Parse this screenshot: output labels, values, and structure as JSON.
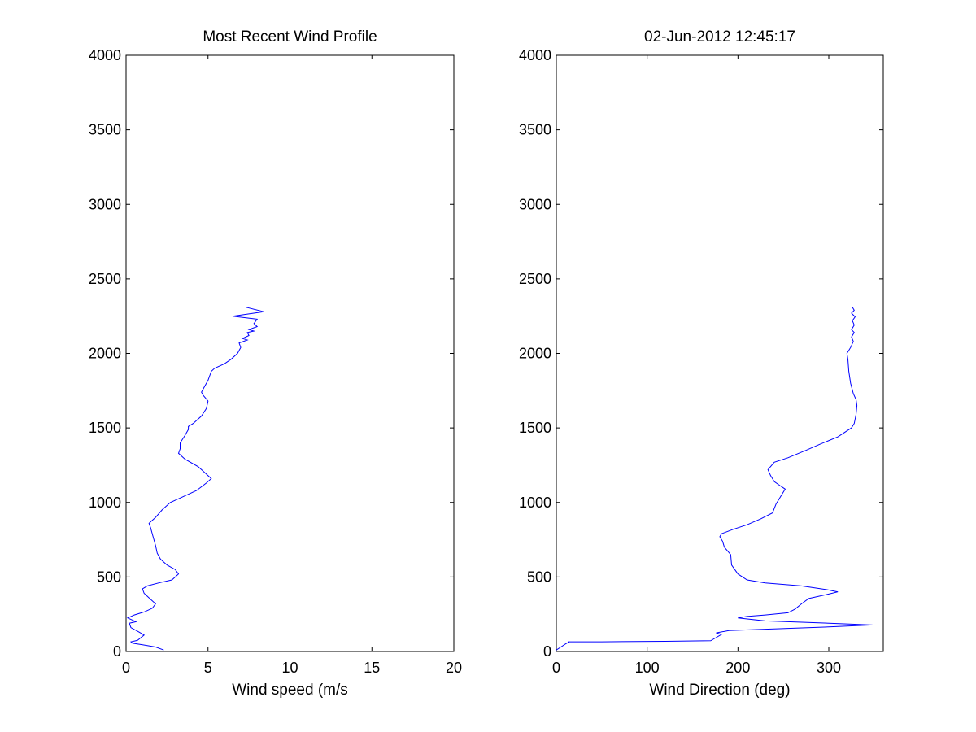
{
  "chart_data": [
    {
      "type": "line",
      "title": "Most Recent Wind Profile",
      "xlabel": "Wind speed (m/s",
      "ylabel": "",
      "xlim": [
        0,
        20
      ],
      "ylim": [
        0,
        4000
      ],
      "xticks": [
        0,
        5,
        10,
        15,
        20
      ],
      "yticks": [
        0,
        500,
        1000,
        1500,
        2000,
        2500,
        3000,
        3500,
        4000
      ],
      "grid": false,
      "line_color": "#0000ff",
      "series": [
        {
          "points": [
            [
              2.3,
              10
            ],
            [
              1.8,
              30
            ],
            [
              1.0,
              45
            ],
            [
              0.4,
              55
            ],
            [
              0.3,
              65
            ],
            [
              0.7,
              75
            ],
            [
              1.1,
              110
            ],
            [
              0.8,
              130
            ],
            [
              0.3,
              160
            ],
            [
              0.2,
              190
            ],
            [
              0.6,
              200
            ],
            [
              0.3,
              215
            ],
            [
              0.1,
              225
            ],
            [
              0.5,
              245
            ],
            [
              1.1,
              265
            ],
            [
              1.6,
              290
            ],
            [
              1.8,
              320
            ],
            [
              1.5,
              350
            ],
            [
              1.1,
              390
            ],
            [
              1.0,
              420
            ],
            [
              1.3,
              440
            ],
            [
              2.0,
              460
            ],
            [
              2.8,
              480
            ],
            [
              3.2,
              520
            ],
            [
              3.0,
              550
            ],
            [
              2.5,
              580
            ],
            [
              2.1,
              620
            ],
            [
              1.9,
              660
            ],
            [
              1.8,
              710
            ],
            [
              1.6,
              790
            ],
            [
              1.5,
              830
            ],
            [
              1.4,
              860
            ],
            [
              1.6,
              880
            ],
            [
              1.8,
              900
            ],
            [
              2.2,
              950
            ],
            [
              2.7,
              1000
            ],
            [
              3.3,
              1030
            ],
            [
              4.3,
              1080
            ],
            [
              4.9,
              1130
            ],
            [
              5.2,
              1160
            ],
            [
              4.9,
              1190
            ],
            [
              4.4,
              1240
            ],
            [
              3.6,
              1290
            ],
            [
              3.2,
              1330
            ],
            [
              3.3,
              1360
            ],
            [
              3.3,
              1400
            ],
            [
              3.6,
              1450
            ],
            [
              3.8,
              1490
            ],
            [
              3.8,
              1510
            ],
            [
              4.1,
              1530
            ],
            [
              4.6,
              1580
            ],
            [
              4.9,
              1630
            ],
            [
              5.0,
              1680
            ],
            [
              4.7,
              1720
            ],
            [
              4.6,
              1740
            ],
            [
              4.7,
              1760
            ],
            [
              5.0,
              1820
            ],
            [
              5.2,
              1880
            ],
            [
              5.4,
              1900
            ],
            [
              6.0,
              1930
            ],
            [
              6.4,
              1960
            ],
            [
              6.8,
              2000
            ],
            [
              7.0,
              2040
            ],
            [
              6.9,
              2070
            ],
            [
              7.4,
              2090
            ],
            [
              7.1,
              2100
            ],
            [
              7.5,
              2120
            ],
            [
              7.4,
              2140
            ],
            [
              7.8,
              2150
            ],
            [
              7.5,
              2160
            ],
            [
              8.0,
              2180
            ],
            [
              7.8,
              2200
            ],
            [
              8.0,
              2230
            ],
            [
              6.5,
              2250
            ],
            [
              8.4,
              2280
            ],
            [
              7.3,
              2310
            ]
          ]
        }
      ]
    },
    {
      "type": "line",
      "title": "02-Jun-2012 12:45:17",
      "xlabel": "Wind Direction (deg)",
      "ylabel": "",
      "xlim": [
        0,
        360
      ],
      "ylim": [
        0,
        4000
      ],
      "xticks": [
        0,
        100,
        200,
        300
      ],
      "yticks": [
        0,
        500,
        1000,
        1500,
        2000,
        2500,
        3000,
        3500,
        4000
      ],
      "grid": false,
      "line_color": "#0000ff",
      "series": [
        {
          "points": [
            [
              0,
              10
            ],
            [
              5,
              30
            ],
            [
              10,
              50
            ],
            [
              13,
              60
            ],
            [
              13,
              65
            ],
            [
              50,
              65
            ],
            [
              120,
              68
            ],
            [
              170,
              72
            ],
            [
              175,
              90
            ],
            [
              182,
              115
            ],
            [
              176,
              125
            ],
            [
              190,
              140
            ],
            [
              300,
              165
            ],
            [
              348,
              178
            ],
            [
              300,
              190
            ],
            [
              230,
              205
            ],
            [
              200,
              225
            ],
            [
              210,
              235
            ],
            [
              230,
              245
            ],
            [
              255,
              260
            ],
            [
              263,
              285
            ],
            [
              270,
              320
            ],
            [
              278,
              355
            ],
            [
              300,
              385
            ],
            [
              310,
              400
            ],
            [
              298,
              415
            ],
            [
              270,
              440
            ],
            [
              230,
              460
            ],
            [
              210,
              480
            ],
            [
              200,
              520
            ],
            [
              193,
              580
            ],
            [
              192,
              650
            ],
            [
              185,
              700
            ],
            [
              183,
              740
            ],
            [
              180,
              770
            ],
            [
              182,
              790
            ],
            [
              195,
              820
            ],
            [
              210,
              850
            ],
            [
              225,
              890
            ],
            [
              238,
              930
            ],
            [
              242,
              990
            ],
            [
              248,
              1050
            ],
            [
              252,
              1090
            ],
            [
              247,
              1110
            ],
            [
              240,
              1140
            ],
            [
              236,
              1180
            ],
            [
              233,
              1220
            ],
            [
              240,
              1270
            ],
            [
              255,
              1300
            ],
            [
              275,
              1350
            ],
            [
              290,
              1390
            ],
            [
              310,
              1440
            ],
            [
              325,
              1500
            ],
            [
              328,
              1530
            ],
            [
              330,
              1590
            ],
            [
              331,
              1650
            ],
            [
              330,
              1690
            ],
            [
              327,
              1730
            ],
            [
              324,
              1800
            ],
            [
              322,
              1880
            ],
            [
              321,
              1960
            ],
            [
              320,
              2000
            ],
            [
              324,
              2040
            ],
            [
              327,
              2080
            ],
            [
              325,
              2110
            ],
            [
              328,
              2140
            ],
            [
              325,
              2160
            ],
            [
              328,
              2190
            ],
            [
              326,
              2220
            ],
            [
              329,
              2245
            ],
            [
              325,
              2270
            ],
            [
              328,
              2290
            ],
            [
              326,
              2310
            ]
          ]
        }
      ]
    }
  ]
}
